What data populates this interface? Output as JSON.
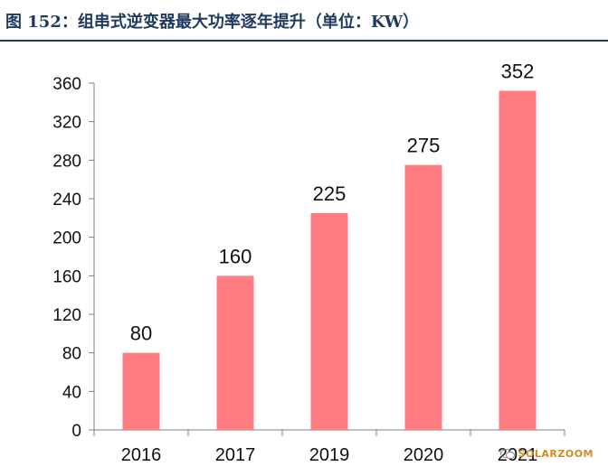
{
  "figure_title": "图 152：组串式逆变器最大功率逐年提升（单位：KW）",
  "watermark": {
    "label": "SOLARZOOM",
    "icon": "wechat-icon"
  },
  "colors": {
    "bar": "#FF7C80",
    "axis": "#7f7f7f",
    "title": "#1f3a5f"
  },
  "chart_data": {
    "type": "bar",
    "title": "",
    "xlabel": "",
    "ylabel": "",
    "categories": [
      "2016",
      "2017",
      "2019",
      "2020",
      "2021"
    ],
    "values": [
      80,
      160,
      225,
      275,
      352
    ],
    "ylim": [
      0,
      360
    ],
    "yticks": [
      0,
      40,
      80,
      120,
      160,
      200,
      240,
      280,
      320,
      360
    ],
    "grid": false,
    "data_labels": [
      "80",
      "160",
      "225",
      "275",
      "352"
    ]
  }
}
